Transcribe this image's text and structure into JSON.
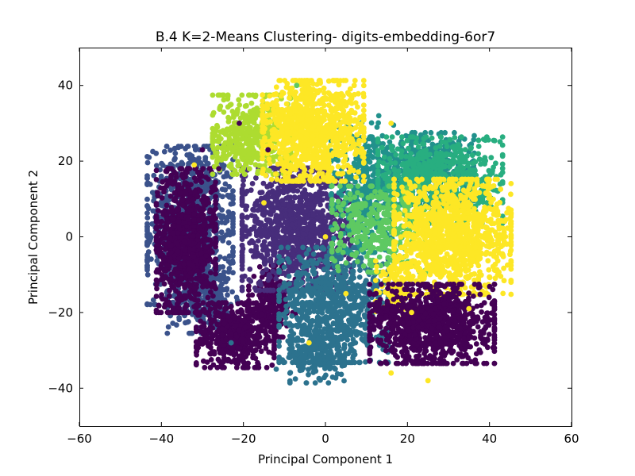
{
  "chart_data": {
    "type": "scatter",
    "title": "B.4 K=2-Means Clustering- digits-embedding-6or7",
    "xlabel": "Principal Component 1",
    "ylabel": "Principal Component 2",
    "xlim": [
      -60,
      60
    ],
    "ylim": [
      -50,
      50
    ],
    "xticks": [
      -60,
      -40,
      -20,
      0,
      20,
      40,
      60
    ],
    "yticks": [
      -40,
      -20,
      0,
      20,
      40
    ],
    "xtick_labels": [
      "−60",
      "−40",
      "−20",
      "0",
      "20",
      "40",
      "60"
    ],
    "ytick_labels": [
      "−40",
      "−20",
      "0",
      "20",
      "40"
    ],
    "grid": false,
    "legend": "none",
    "colors": {
      "c0": "#440154",
      "c1": "#472d7b",
      "c2": "#3b528b",
      "c3": "#2c728e",
      "c4": "#21918c",
      "c5": "#28ae80",
      "c6": "#5ec962",
      "c7": "#addc30",
      "c8": "#fde725"
    },
    "clusters": [
      {
        "color": "c2",
        "cx": -33,
        "cy": 3,
        "sx": 5.5,
        "sy": 11,
        "n": 900
      },
      {
        "color": "c2",
        "cx": -30,
        "cy": -16,
        "sx": 4.5,
        "sy": 5,
        "n": 300
      },
      {
        "color": "c0",
        "cx": -34,
        "cy": -1,
        "sx": 3.8,
        "sy": 10,
        "n": 900
      },
      {
        "color": "c0",
        "cx": -22,
        "cy": -26,
        "sx": 5,
        "sy": 4.5,
        "n": 500
      },
      {
        "color": "c0",
        "cx": -13,
        "cy": -17,
        "sx": 3,
        "sy": 5,
        "n": 200
      },
      {
        "color": "c1",
        "cx": -7,
        "cy": 2,
        "sx": 7,
        "sy": 8.5,
        "n": 1100
      },
      {
        "color": "c3",
        "cx": 2,
        "cy": -18,
        "sx": 7,
        "sy": 8,
        "n": 800
      },
      {
        "color": "c3",
        "cx": -2,
        "cy": -31,
        "sx": 3.5,
        "sy": 4,
        "n": 200
      },
      {
        "color": "c4",
        "cx": 9,
        "cy": 13,
        "sx": 4,
        "sy": 9,
        "n": 350
      },
      {
        "color": "c4",
        "cx": 23,
        "cy": 18,
        "sx": 7,
        "sy": 5,
        "n": 500
      },
      {
        "color": "c5",
        "cx": 28,
        "cy": 15,
        "sx": 8,
        "sy": 6,
        "n": 600
      },
      {
        "color": "c6",
        "cx": 13,
        "cy": 2,
        "sx": 6,
        "sy": 6,
        "n": 350
      },
      {
        "color": "c7",
        "cx": -18,
        "cy": 27,
        "sx": 5,
        "sy": 5.5,
        "n": 450
      },
      {
        "color": "c8",
        "cx": -3,
        "cy": 28,
        "sx": 6.5,
        "sy": 7,
        "n": 1000
      },
      {
        "color": "c8",
        "cx": 31,
        "cy": 0,
        "sx": 7.5,
        "sy": 8,
        "n": 1200
      },
      {
        "color": "c8",
        "cx": 17,
        "cy": -14,
        "sx": 2.5,
        "sy": 4,
        "n": 100
      },
      {
        "color": "c0",
        "cx": 26,
        "cy": -23,
        "sx": 8,
        "sy": 5.5,
        "n": 1000
      }
    ],
    "outliers": [
      {
        "x": -30,
        "y": 23,
        "color": "c0"
      },
      {
        "x": -21,
        "y": 30,
        "color": "c0"
      },
      {
        "x": -14,
        "y": 23,
        "color": "c0"
      },
      {
        "x": -26,
        "y": 18,
        "color": "c0"
      },
      {
        "x": 25,
        "y": -38,
        "color": "c8"
      },
      {
        "x": 16,
        "y": -36,
        "color": "c8"
      },
      {
        "x": -15,
        "y": 9,
        "color": "c8"
      },
      {
        "x": 0,
        "y": 0,
        "color": "c8"
      },
      {
        "x": 13,
        "y": 32,
        "color": "c4"
      },
      {
        "x": 16,
        "y": 30,
        "color": "c8"
      },
      {
        "x": 7,
        "y": 40,
        "color": "c8"
      },
      {
        "x": -7,
        "y": 40,
        "color": "c6"
      },
      {
        "x": -4,
        "y": -28,
        "color": "c8"
      },
      {
        "x": 5,
        "y": -15,
        "color": "c8"
      },
      {
        "x": -12,
        "y": -35,
        "color": "c3"
      },
      {
        "x": 42,
        "y": -10,
        "color": "c8"
      },
      {
        "x": 35,
        "y": -19,
        "color": "c8"
      },
      {
        "x": 21,
        "y": -20,
        "color": "c8"
      },
      {
        "x": -23,
        "y": -28,
        "color": "c3"
      },
      {
        "x": -21,
        "y": 19,
        "color": "c7"
      },
      {
        "x": -32,
        "y": 19,
        "color": "c8"
      }
    ]
  }
}
